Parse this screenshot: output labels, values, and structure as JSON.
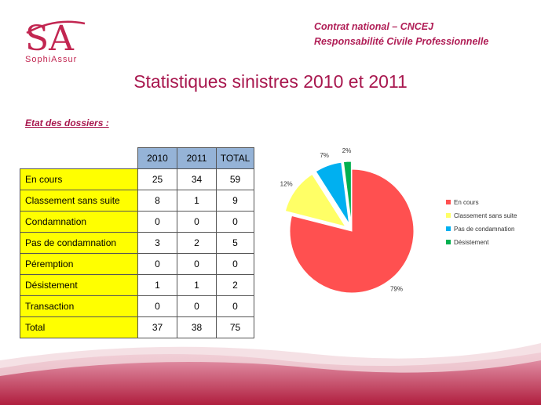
{
  "logo": {
    "monogram": "SA",
    "name": "SophiAssur"
  },
  "header": {
    "line1": "Contrat national – CNCEJ",
    "line2": "Responsabilité Civile Professionnelle"
  },
  "title": "Statistiques sinistres 2010 et 2011",
  "section_label": "Etat des dossiers :",
  "table": {
    "columns": [
      "2010",
      "2011",
      "TOTAL"
    ],
    "rows": [
      {
        "label": "En cours",
        "values": [
          "25",
          "34",
          "59"
        ]
      },
      {
        "label": "Classement sans suite",
        "values": [
          "8",
          "1",
          "9"
        ]
      },
      {
        "label": "Condamnation",
        "values": [
          "0",
          "0",
          "0"
        ]
      },
      {
        "label": "Pas de condamnation",
        "values": [
          "3",
          "2",
          "5"
        ]
      },
      {
        "label": "Péremption",
        "values": [
          "0",
          "0",
          "0"
        ]
      },
      {
        "label": "Désistement",
        "values": [
          "1",
          "1",
          "2"
        ]
      },
      {
        "label": "Transaction",
        "values": [
          "0",
          "0",
          "0"
        ]
      },
      {
        "label": "Total",
        "values": [
          "37",
          "38",
          "75"
        ]
      }
    ]
  },
  "colors": {
    "brand": "#b01e56",
    "table_header": "#95b3d7",
    "table_label": "#ffff00"
  },
  "chart_data": {
    "type": "pie",
    "title": "",
    "slices": [
      {
        "name": "En cours",
        "value": 79,
        "label": "79%",
        "color": "#ff5050"
      },
      {
        "name": "Classement sans suite",
        "value": 12,
        "label": "12%",
        "color": "#ffff66"
      },
      {
        "name": "Pas de condamnation",
        "value": 7,
        "label": "7%",
        "color": "#00b0f0"
      },
      {
        "name": "Désistement",
        "value": 2,
        "label": "2%",
        "color": "#00b050"
      }
    ],
    "exploded": true,
    "legend_position": "right"
  }
}
